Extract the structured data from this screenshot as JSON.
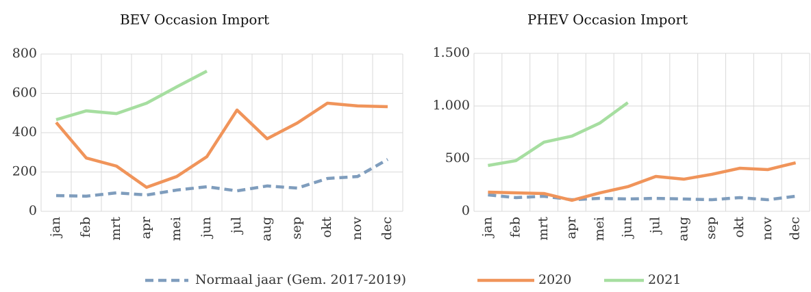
{
  "chart_data": [
    {
      "type": "line",
      "title": "BEV Occasion Import",
      "categories": [
        "jan",
        "feb",
        "mrt",
        "apr",
        "mei",
        "jun",
        "jul",
        "aug",
        "sep",
        "okt",
        "nov",
        "dec"
      ],
      "ylim": [
        0,
        800
      ],
      "yticks": [
        0,
        200,
        400,
        600,
        800
      ],
      "grid": true,
      "series": [
        {
          "name": "Normaal jaar (Gem. 2017-2019)",
          "color": "#7f9dbd",
          "dashed": true,
          "values": [
            80,
            77,
            94,
            83,
            108,
            125,
            104,
            129,
            118,
            167,
            177,
            264
          ]
        },
        {
          "name": "2020",
          "color": "#f0945a",
          "values": [
            452,
            271,
            230,
            122,
            177,
            278,
            515,
            369,
            449,
            550,
            536,
            532
          ]
        },
        {
          "name": "2021",
          "color": "#a6dea0",
          "values": [
            466,
            511,
            497,
            550,
            633,
            713,
            null,
            null,
            null,
            null,
            null,
            null
          ]
        }
      ]
    },
    {
      "type": "line",
      "title": "PHEV Occasion Import",
      "categories": [
        "jan",
        "feb",
        "mrt",
        "apr",
        "mei",
        "jun",
        "jul",
        "aug",
        "sep",
        "okt",
        "nov",
        "dec"
      ],
      "ylim": [
        0,
        1500
      ],
      "yticks": [
        0,
        500,
        {
          "value": 1000,
          "label": "1.000"
        },
        {
          "value": 1500,
          "label": "1.500"
        }
      ],
      "grid": true,
      "series": [
        {
          "color": "#7f9dbd",
          "dashed": true,
          "values": [
            156,
            130,
            143,
            110,
            123,
            117,
            123,
            117,
            110,
            130,
            110,
            143
          ]
        },
        {
          "color": "#f0945a",
          "values": [
            182,
            175,
            169,
            104,
            175,
            234,
            331,
            305,
            351,
            409,
            396,
            461
          ]
        },
        {
          "color": "#a6dea0",
          "values": [
            435,
            481,
            656,
            714,
            838,
            1032,
            null,
            null,
            null,
            null,
            null,
            null
          ]
        }
      ]
    }
  ]
}
